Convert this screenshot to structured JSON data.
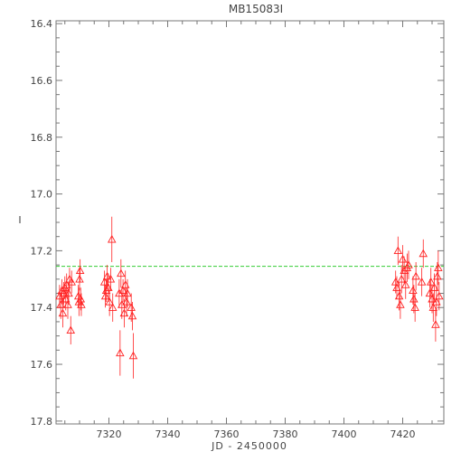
{
  "chart_data": {
    "type": "scatter",
    "title": "MB15083I",
    "xlabel": "JD - 2450000",
    "ylabel": "I",
    "xlim": [
      7302,
      7434
    ],
    "ylim": [
      17.81,
      16.39
    ],
    "y_inverted": true,
    "grid": false,
    "x_ticks": [
      7320,
      7340,
      7360,
      7380,
      7400,
      7420
    ],
    "y_ticks": [
      "16.4",
      "16.6",
      "16.8",
      "17.0",
      "17.2",
      "17.4",
      "17.6",
      "17.8"
    ],
    "y_tick_values": [
      16.4,
      16.6,
      16.8,
      17.0,
      17.2,
      17.4,
      17.6,
      17.8
    ],
    "reference_line": {
      "y": 17.255,
      "color": "#33cc33"
    },
    "series": [
      {
        "marker": "triangle",
        "color": "#ff2222",
        "points": [
          {
            "x": 7303.2,
            "y": 17.36,
            "err": 0.04
          },
          {
            "x": 7303.6,
            "y": 17.39,
            "err": 0.05
          },
          {
            "x": 7304.0,
            "y": 17.34,
            "err": 0.04
          },
          {
            "x": 7304.3,
            "y": 17.42,
            "err": 0.05
          },
          {
            "x": 7304.6,
            "y": 17.35,
            "err": 0.04
          },
          {
            "x": 7305.0,
            "y": 17.33,
            "err": 0.04
          },
          {
            "x": 7305.3,
            "y": 17.37,
            "err": 0.04
          },
          {
            "x": 7305.6,
            "y": 17.32,
            "err": 0.04
          },
          {
            "x": 7306.0,
            "y": 17.39,
            "err": 0.05
          },
          {
            "x": 7306.3,
            "y": 17.35,
            "err": 0.04
          },
          {
            "x": 7306.6,
            "y": 17.3,
            "err": 0.04
          },
          {
            "x": 7307.0,
            "y": 17.48,
            "err": 0.05
          },
          {
            "x": 7307.3,
            "y": 17.31,
            "err": 0.04
          },
          {
            "x": 7309.6,
            "y": 17.36,
            "err": 0.04
          },
          {
            "x": 7309.8,
            "y": 17.38,
            "err": 0.05
          },
          {
            "x": 7310.0,
            "y": 17.3,
            "err": 0.04
          },
          {
            "x": 7310.2,
            "y": 17.27,
            "err": 0.04
          },
          {
            "x": 7310.4,
            "y": 17.37,
            "err": 0.04
          },
          {
            "x": 7310.6,
            "y": 17.39,
            "err": 0.04
          },
          {
            "x": 7318.5,
            "y": 17.31,
            "err": 0.04
          },
          {
            "x": 7318.8,
            "y": 17.36,
            "err": 0.04
          },
          {
            "x": 7319.1,
            "y": 17.34,
            "err": 0.04
          },
          {
            "x": 7319.4,
            "y": 17.29,
            "err": 0.04
          },
          {
            "x": 7319.8,
            "y": 17.33,
            "err": 0.05
          },
          {
            "x": 7320.2,
            "y": 17.38,
            "err": 0.05
          },
          {
            "x": 7320.6,
            "y": 17.3,
            "err": 0.04
          },
          {
            "x": 7321.0,
            "y": 17.16,
            "err": 0.08
          },
          {
            "x": 7321.3,
            "y": 17.4,
            "err": 0.05
          },
          {
            "x": 7323.5,
            "y": 17.35,
            "err": 0.05
          },
          {
            "x": 7323.8,
            "y": 17.56,
            "err": 0.08
          },
          {
            "x": 7324.1,
            "y": 17.28,
            "err": 0.05
          },
          {
            "x": 7324.4,
            "y": 17.39,
            "err": 0.05
          },
          {
            "x": 7324.8,
            "y": 17.34,
            "err": 0.04
          },
          {
            "x": 7325.2,
            "y": 17.42,
            "err": 0.05
          },
          {
            "x": 7325.6,
            "y": 17.32,
            "err": 0.05
          },
          {
            "x": 7326.0,
            "y": 17.38,
            "err": 0.05
          },
          {
            "x": 7326.3,
            "y": 17.35,
            "err": 0.05
          },
          {
            "x": 7327.6,
            "y": 17.4,
            "err": 0.05
          },
          {
            "x": 7328.0,
            "y": 17.43,
            "err": 0.05
          },
          {
            "x": 7328.3,
            "y": 17.57,
            "err": 0.08
          },
          {
            "x": 7417.6,
            "y": 17.31,
            "err": 0.04
          },
          {
            "x": 7418.0,
            "y": 17.33,
            "err": 0.04
          },
          {
            "x": 7418.4,
            "y": 17.2,
            "err": 0.05
          },
          {
            "x": 7418.8,
            "y": 17.36,
            "err": 0.05
          },
          {
            "x": 7419.2,
            "y": 17.39,
            "err": 0.05
          },
          {
            "x": 7419.6,
            "y": 17.3,
            "err": 0.05
          },
          {
            "x": 7420.0,
            "y": 17.23,
            "err": 0.05
          },
          {
            "x": 7420.5,
            "y": 17.27,
            "err": 0.05
          },
          {
            "x": 7421.0,
            "y": 17.32,
            "err": 0.05
          },
          {
            "x": 7421.5,
            "y": 17.26,
            "err": 0.05
          },
          {
            "x": 7422.0,
            "y": 17.25,
            "err": 0.05
          },
          {
            "x": 7423.5,
            "y": 17.34,
            "err": 0.05
          },
          {
            "x": 7423.8,
            "y": 17.37,
            "err": 0.05
          },
          {
            "x": 7424.2,
            "y": 17.4,
            "err": 0.05
          },
          {
            "x": 7424.5,
            "y": 17.29,
            "err": 0.05
          },
          {
            "x": 7426.5,
            "y": 17.31,
            "err": 0.05
          },
          {
            "x": 7427.0,
            "y": 17.21,
            "err": 0.05
          },
          {
            "x": 7429.2,
            "y": 17.35,
            "err": 0.05
          },
          {
            "x": 7429.6,
            "y": 17.31,
            "err": 0.05
          },
          {
            "x": 7430.0,
            "y": 17.37,
            "err": 0.05
          },
          {
            "x": 7430.4,
            "y": 17.4,
            "err": 0.05
          },
          {
            "x": 7430.8,
            "y": 17.33,
            "err": 0.05
          },
          {
            "x": 7431.2,
            "y": 17.46,
            "err": 0.06
          },
          {
            "x": 7431.5,
            "y": 17.38,
            "err": 0.05
          },
          {
            "x": 7431.8,
            "y": 17.29,
            "err": 0.05
          },
          {
            "x": 7432.1,
            "y": 17.26,
            "err": 0.06
          },
          {
            "x": 7432.4,
            "y": 17.36,
            "err": 0.05
          }
        ]
      }
    ]
  }
}
